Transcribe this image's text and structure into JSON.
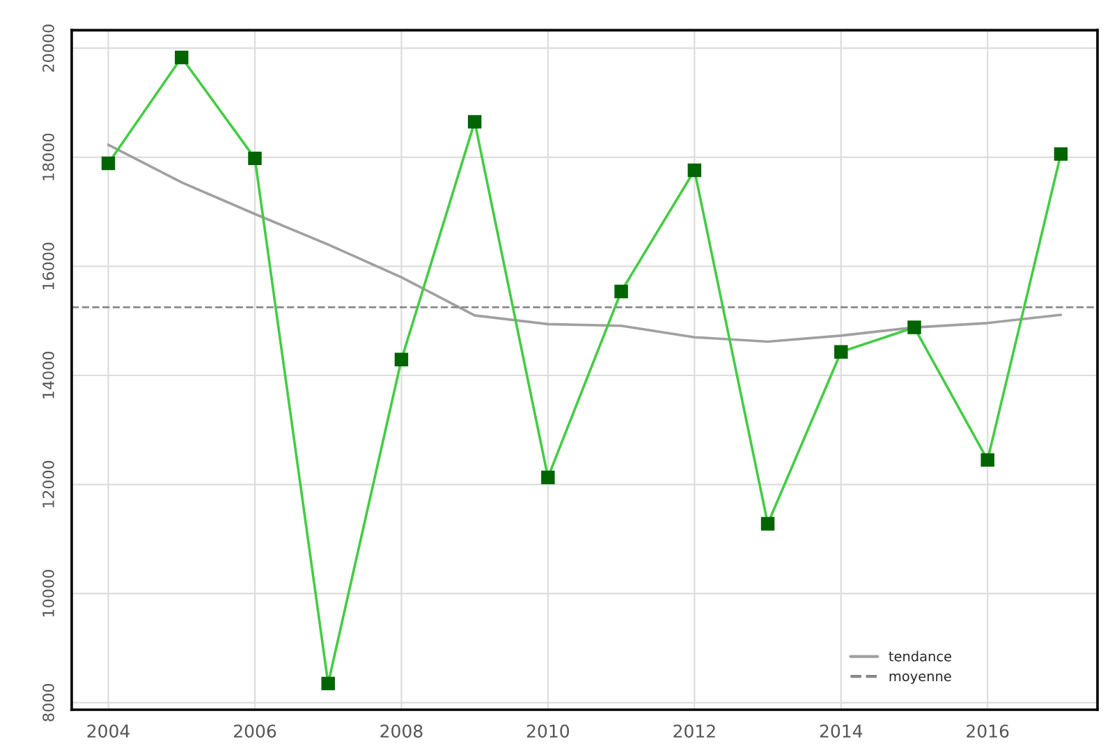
{
  "chart_data": {
    "type": "line",
    "x": [
      2004,
      2005,
      2006,
      2007,
      2008,
      2009,
      2010,
      2011,
      2012,
      2013,
      2014,
      2015,
      2016,
      2017
    ],
    "series": [
      {
        "color": "#44cc44",
        "colors": [
          "#006400",
          "#006400",
          "#006400",
          "#006400",
          "#006400",
          "#006400",
          "#006400",
          "#006400",
          "#006400",
          "#006400",
          "#006400",
          "#006400",
          "#006400",
          "#006400"
        ],
        "marker": "square",
        "values": [
          17890,
          19830,
          17980,
          8350,
          14290,
          18650,
          12130,
          15540,
          17760,
          11280,
          14430,
          14880,
          12450,
          18060
        ]
      },
      {
        "name": "tendance",
        "color": "#a0a0a0",
        "marker": "none",
        "values": [
          18230,
          17540,
          16960,
          16400,
          15800,
          15100,
          14940,
          14910,
          14700,
          14620,
          14730,
          14880,
          14960,
          15110
        ]
      }
    ],
    "ref_lines": [
      {
        "axis": "y",
        "value": 15250,
        "label": "moyenne",
        "color": "#888888",
        "line_style": "dashed"
      }
    ],
    "xlim": [
      2003.5,
      2017.5
    ],
    "xticks": [
      2004,
      2006,
      2008,
      2010,
      2012,
      2014,
      2016
    ],
    "ylim": [
      7870,
      20330
    ],
    "yticks": [
      8000,
      10000,
      12000,
      14000,
      16000,
      18000,
      20000
    ],
    "grid": true,
    "legend": "bottom right"
  }
}
